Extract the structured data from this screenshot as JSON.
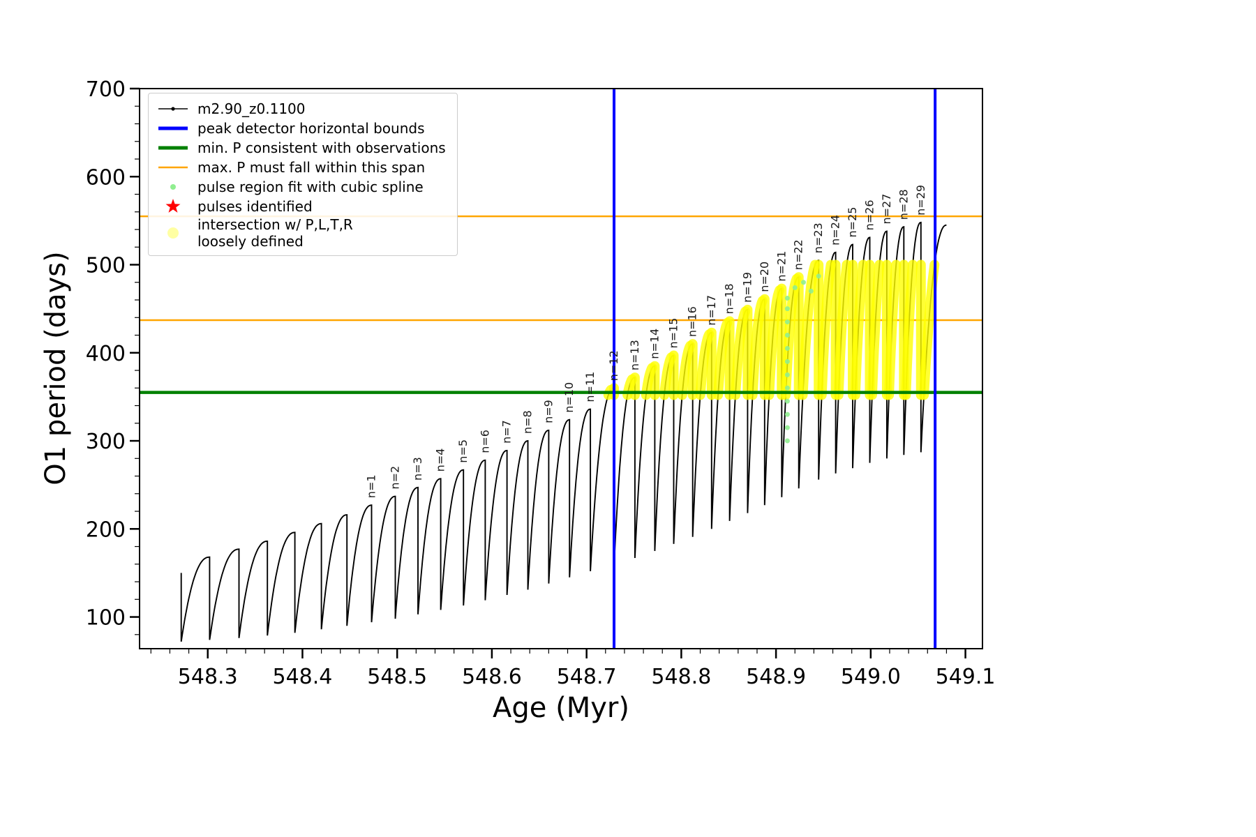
{
  "axes": {
    "xlabel": "Age (Myr)",
    "ylabel": "O1 period (days)",
    "xlim": [
      548.228,
      549.118
    ],
    "ylim": [
      64,
      700
    ],
    "xticks": [
      548.3,
      548.4,
      548.5,
      548.6,
      548.7,
      548.8,
      548.9,
      549.0,
      549.1
    ],
    "yticks": [
      100,
      200,
      300,
      400,
      500,
      600,
      700
    ],
    "x_minor_step": 0.02,
    "y_minor_step": 20
  },
  "legend": {
    "items": [
      {
        "label": "m2.90_z0.1100"
      },
      {
        "label": "peak detector horizontal bounds"
      },
      {
        "label": "min. P consistent with observations"
      },
      {
        "label": "max. P must fall within this span"
      },
      {
        "label": "pulse region fit with cubic spline"
      },
      {
        "label": "pulses identified"
      },
      {
        "label": "intersection w/ P,L,T,R\nloosely defined"
      }
    ]
  },
  "chart_data": {
    "type": "line",
    "series_name": "m2.90_z0.1100",
    "title": "",
    "xlabel": "Age (Myr)",
    "ylabel": "O1 period (days)",
    "colors": {
      "series": "#000000",
      "blue": "#0000ff",
      "green": "#008000",
      "orange": "#ffa500",
      "lightgreen": "#90ee90",
      "yellow": "#ffff00",
      "red": "#ff0000"
    },
    "x_start": 548.272,
    "lead_in_y": 150,
    "pulses": [
      {
        "n": null,
        "x_peak": 548.302,
        "y_peak": 168,
        "y_start": 72
      },
      {
        "n": null,
        "x_peak": 548.333,
        "y_peak": 177,
        "y_start": 74
      },
      {
        "n": null,
        "x_peak": 548.363,
        "y_peak": 186,
        "y_start": 76
      },
      {
        "n": null,
        "x_peak": 548.392,
        "y_peak": 196,
        "y_start": 79
      },
      {
        "n": null,
        "x_peak": 548.42,
        "y_peak": 206,
        "y_start": 82
      },
      {
        "n": null,
        "x_peak": 548.447,
        "y_peak": 216,
        "y_start": 86
      },
      {
        "n": 1,
        "x_peak": 548.473,
        "y_peak": 227,
        "y_start": 90
      },
      {
        "n": 2,
        "x_peak": 548.498,
        "y_peak": 237,
        "y_start": 94
      },
      {
        "n": 3,
        "x_peak": 548.522,
        "y_peak": 247,
        "y_start": 98
      },
      {
        "n": 4,
        "x_peak": 548.546,
        "y_peak": 257,
        "y_start": 103
      },
      {
        "n": 5,
        "x_peak": 548.57,
        "y_peak": 267,
        "y_start": 108
      },
      {
        "n": 6,
        "x_peak": 548.593,
        "y_peak": 278,
        "y_start": 113
      },
      {
        "n": 7,
        "x_peak": 548.616,
        "y_peak": 289,
        "y_start": 119
      },
      {
        "n": 8,
        "x_peak": 548.638,
        "y_peak": 300,
        "y_start": 125
      },
      {
        "n": 9,
        "x_peak": 548.66,
        "y_peak": 312,
        "y_start": 131
      },
      {
        "n": 10,
        "x_peak": 548.682,
        "y_peak": 324,
        "y_start": 138
      },
      {
        "n": 11,
        "x_peak": 548.704,
        "y_peak": 336,
        "y_start": 145
      },
      {
        "n": 12,
        "x_peak": 548.729,
        "y_peak": 360,
        "y_start": 152
      },
      {
        "n": 13,
        "x_peak": 548.751,
        "y_peak": 372,
        "y_start": 159
      },
      {
        "n": 14,
        "x_peak": 548.772,
        "y_peak": 385,
        "y_start": 167
      },
      {
        "n": 15,
        "x_peak": 548.792,
        "y_peak": 397,
        "y_start": 175
      },
      {
        "n": 16,
        "x_peak": 548.812,
        "y_peak": 410,
        "y_start": 183
      },
      {
        "n": 17,
        "x_peak": 548.832,
        "y_peak": 423,
        "y_start": 191
      },
      {
        "n": 18,
        "x_peak": 548.851,
        "y_peak": 436,
        "y_start": 200
      },
      {
        "n": 19,
        "x_peak": 548.87,
        "y_peak": 449,
        "y_start": 209
      },
      {
        "n": 20,
        "x_peak": 548.888,
        "y_peak": 461,
        "y_start": 218
      },
      {
        "n": 21,
        "x_peak": 548.906,
        "y_peak": 473,
        "y_start": 227
      },
      {
        "n": 22,
        "x_peak": 548.924,
        "y_peak": 486,
        "y_start": 236
      },
      {
        "n": 23,
        "x_peak": 548.945,
        "y_peak": 505,
        "y_start": 246
      },
      {
        "n": 24,
        "x_peak": 548.963,
        "y_peak": 514,
        "y_start": 256
      },
      {
        "n": 25,
        "x_peak": 548.981,
        "y_peak": 523,
        "y_start": 263
      },
      {
        "n": 26,
        "x_peak": 548.999,
        "y_peak": 531,
        "y_start": 269
      },
      {
        "n": 27,
        "x_peak": 549.017,
        "y_peak": 538,
        "y_start": 275
      },
      {
        "n": 28,
        "x_peak": 549.035,
        "y_peak": 543,
        "y_start": 280
      },
      {
        "n": 29,
        "x_peak": 549.053,
        "y_peak": 548,
        "y_start": 284
      },
      {
        "n": null,
        "x_peak": 549.08,
        "y_peak": 545,
        "y_start": 287,
        "partial": true
      }
    ],
    "reference_lines": {
      "blue_vertical_x": [
        548.729,
        549.068
      ],
      "green_horizontal_y": 355,
      "orange_horizontal_y": [
        437,
        555
      ]
    },
    "yellow_overlay": {
      "y_min": 352,
      "y_max": 500,
      "applies_from_n": 12
    },
    "spline_points": [
      [
        548.912,
        300
      ],
      [
        548.912,
        315
      ],
      [
        548.912,
        330
      ],
      [
        548.912,
        345
      ],
      [
        548.912,
        360
      ],
      [
        548.912,
        375
      ],
      [
        548.912,
        390
      ],
      [
        548.912,
        405
      ],
      [
        548.912,
        420
      ],
      [
        548.912,
        435
      ],
      [
        548.912,
        450
      ],
      [
        548.912,
        462
      ],
      [
        548.92,
        474
      ],
      [
        548.929,
        480
      ],
      [
        548.937,
        470
      ],
      [
        548.945,
        487
      ]
    ]
  }
}
